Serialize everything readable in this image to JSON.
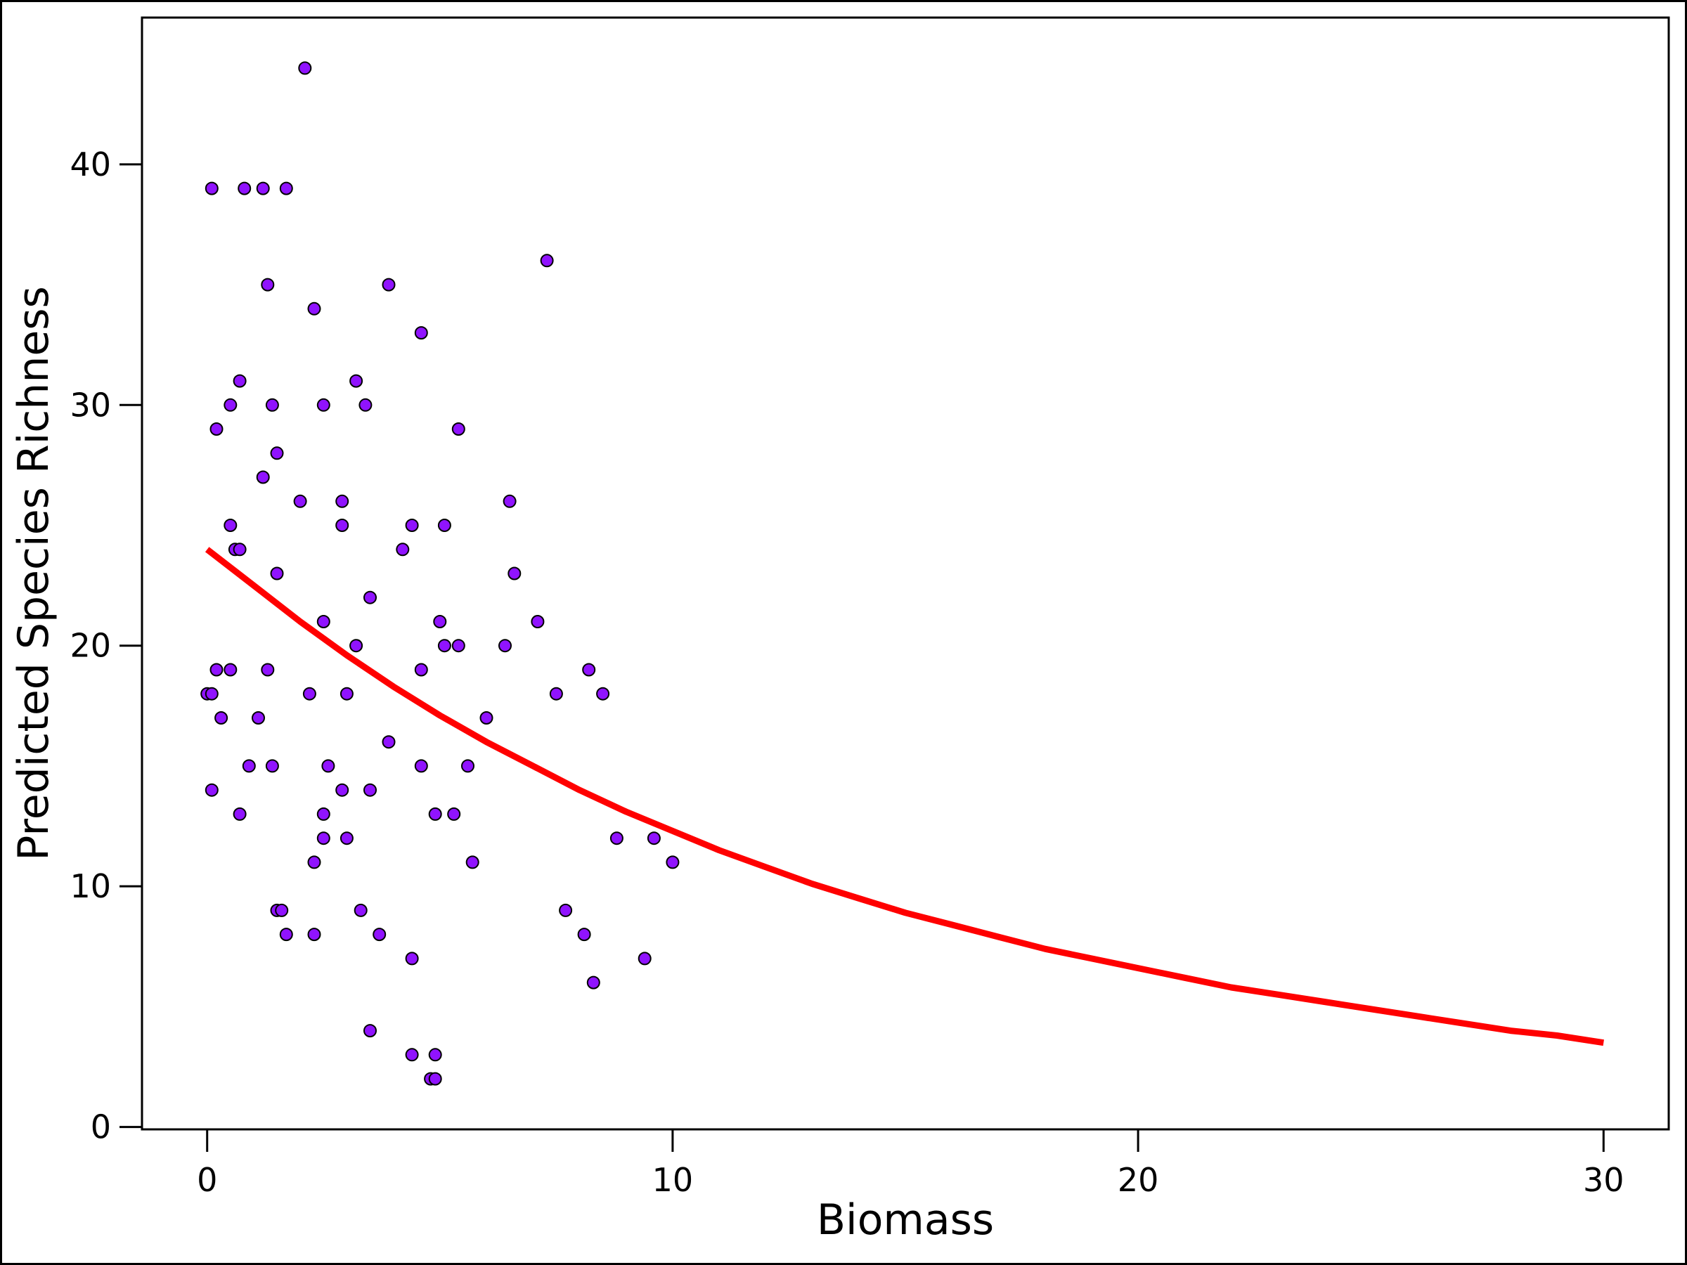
{
  "chart_data": {
    "type": "scatter",
    "xlabel": "Biomass",
    "ylabel": "Predicted Species Richness",
    "xlim": [
      -1.4,
      31.4
    ],
    "ylim": [
      -0.1,
      46.1
    ],
    "x_ticks": [
      0,
      10,
      20,
      30
    ],
    "y_ticks": [
      0,
      10,
      20,
      30,
      40
    ],
    "grid": false,
    "colors": {
      "points": "#9013FE",
      "point_edge": "#000000",
      "curve": "#FF0000",
      "frame": "#000000"
    },
    "series": [
      {
        "kind": "points",
        "points": [
          [
            2.1,
            44
          ],
          [
            0.1,
            39
          ],
          [
            0.8,
            39
          ],
          [
            1.2,
            39
          ],
          [
            1.7,
            39
          ],
          [
            7.3,
            36
          ],
          [
            1.3,
            35
          ],
          [
            3.9,
            35
          ],
          [
            2.3,
            34
          ],
          [
            4.6,
            33
          ],
          [
            0.7,
            31
          ],
          [
            3.2,
            31
          ],
          [
            0.5,
            30
          ],
          [
            1.4,
            30
          ],
          [
            2.5,
            30
          ],
          [
            3.4,
            30
          ],
          [
            0.2,
            29
          ],
          [
            5.4,
            29
          ],
          [
            1.5,
            28
          ],
          [
            1.2,
            27
          ],
          [
            2.0,
            26
          ],
          [
            2.9,
            26
          ],
          [
            6.5,
            26
          ],
          [
            0.5,
            25
          ],
          [
            2.9,
            25
          ],
          [
            4.4,
            25
          ],
          [
            5.1,
            25
          ],
          [
            0.6,
            24
          ],
          [
            0.7,
            24
          ],
          [
            4.2,
            24
          ],
          [
            1.5,
            23
          ],
          [
            6.6,
            23
          ],
          [
            3.5,
            22
          ],
          [
            2.5,
            21
          ],
          [
            5.0,
            21
          ],
          [
            7.1,
            21
          ],
          [
            3.2,
            20
          ],
          [
            5.1,
            20
          ],
          [
            5.4,
            20
          ],
          [
            6.4,
            20
          ],
          [
            0.2,
            19
          ],
          [
            0.5,
            19
          ],
          [
            1.3,
            19
          ],
          [
            4.6,
            19
          ],
          [
            8.2,
            19
          ],
          [
            0.0,
            18
          ],
          [
            0.1,
            18
          ],
          [
            2.2,
            18
          ],
          [
            3.0,
            18
          ],
          [
            7.5,
            18
          ],
          [
            8.5,
            18
          ],
          [
            0.3,
            17
          ],
          [
            1.1,
            17
          ],
          [
            6.0,
            17
          ],
          [
            3.9,
            16
          ],
          [
            0.9,
            15
          ],
          [
            1.4,
            15
          ],
          [
            2.6,
            15
          ],
          [
            4.6,
            15
          ],
          [
            5.6,
            15
          ],
          [
            0.1,
            14
          ],
          [
            2.9,
            14
          ],
          [
            3.5,
            14
          ],
          [
            0.7,
            13
          ],
          [
            2.5,
            13
          ],
          [
            4.9,
            13
          ],
          [
            5.3,
            13
          ],
          [
            2.5,
            12
          ],
          [
            3.0,
            12
          ],
          [
            8.8,
            12
          ],
          [
            9.6,
            12
          ],
          [
            2.3,
            11
          ],
          [
            5.7,
            11
          ],
          [
            10.0,
            11
          ],
          [
            1.5,
            9
          ],
          [
            1.6,
            9
          ],
          [
            3.3,
            9
          ],
          [
            7.7,
            9
          ],
          [
            1.7,
            8
          ],
          [
            2.3,
            8
          ],
          [
            3.7,
            8
          ],
          [
            8.1,
            8
          ],
          [
            4.4,
            7
          ],
          [
            9.4,
            7
          ],
          [
            8.3,
            6
          ],
          [
            3.5,
            4
          ],
          [
            4.4,
            3
          ],
          [
            4.9,
            3
          ],
          [
            4.8,
            2
          ],
          [
            4.9,
            2
          ]
        ]
      },
      {
        "kind": "fitted-curve",
        "x": [
          0,
          1,
          2,
          3,
          4,
          5,
          6,
          7,
          8,
          9,
          10,
          11,
          12,
          13,
          14,
          15,
          16,
          17,
          18,
          19,
          20,
          21,
          22,
          23,
          24,
          25,
          26,
          27,
          28,
          29,
          30
        ],
        "values": [
          24.0,
          22.5,
          21.0,
          19.6,
          18.3,
          17.1,
          16.0,
          15.0,
          14.0,
          13.1,
          12.3,
          11.5,
          10.8,
          10.1,
          9.5,
          8.9,
          8.4,
          7.9,
          7.4,
          7.0,
          6.6,
          6.2,
          5.8,
          5.5,
          5.2,
          4.9,
          4.6,
          4.3,
          4.0,
          3.8,
          3.5
        ]
      }
    ]
  }
}
